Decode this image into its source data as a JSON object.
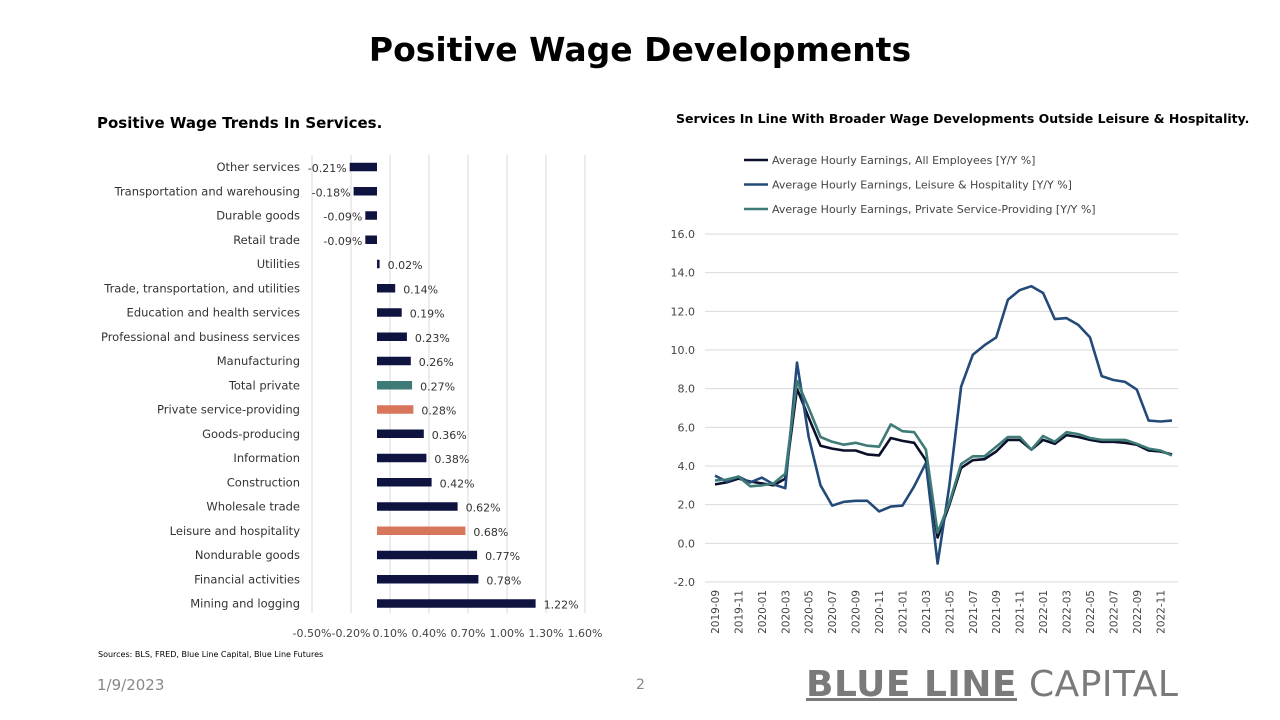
{
  "slide": {
    "title": "Positive Wage Developments",
    "sources": "Sources: BLS, FRED, Blue Line Capital,  Blue Line Futures",
    "date": "1/9/2023",
    "page_number": "2",
    "logo": {
      "bold": "BLUE LINE",
      "light": " CAPITAL"
    }
  },
  "chart_data": [
    {
      "type": "bar",
      "orientation": "horizontal",
      "title": "Positive Wage Trends In Services.",
      "categories": [
        "Other services",
        "Transportation and warehousing",
        "Durable goods",
        "Retail trade",
        "Utilities",
        "Trade, transportation, and utilities",
        "Education and health services",
        "Professional and business services",
        "Manufacturing",
        "Total private",
        "Private service-providing",
        "Goods-producing",
        "Information",
        "Construction",
        "Wholesale trade",
        "Leisure and hospitality",
        "Nondurable goods",
        "Financial activities",
        "Mining and logging"
      ],
      "values": [
        -0.21,
        -0.18,
        -0.09,
        -0.09,
        0.02,
        0.14,
        0.19,
        0.23,
        0.26,
        0.27,
        0.28,
        0.36,
        0.38,
        0.42,
        0.62,
        0.68,
        0.77,
        0.78,
        1.22
      ],
      "data_labels": [
        "-0.21%",
        "-0.18%",
        "-0.09%",
        "-0.09%",
        "0.02%",
        "0.14%",
        "0.19%",
        "0.23%",
        "0.26%",
        "0.27%",
        "0.28%",
        "0.36%",
        "0.38%",
        "0.42%",
        "0.62%",
        "0.68%",
        "0.77%",
        "0.78%",
        "1.22%"
      ],
      "bar_colors": [
        "#0f1340",
        "#0f1340",
        "#0f1340",
        "#0f1340",
        "#0f1340",
        "#0f1340",
        "#0f1340",
        "#0f1340",
        "#0f1340",
        "#3e7a76",
        "#d8765c",
        "#0f1340",
        "#0f1340",
        "#0f1340",
        "#0f1340",
        "#d8765c",
        "#0f1340",
        "#0f1340",
        "#0f1340"
      ],
      "xlim": [
        -0.5,
        1.6
      ],
      "x_ticks": [
        -0.5,
        -0.2,
        0.1,
        0.4,
        0.7,
        1.0,
        1.3,
        1.6
      ],
      "x_tick_labels": [
        "-0.50%",
        "-0.20%",
        "0.10%",
        "0.40%",
        "0.70%",
        "1.00%",
        "1.30%",
        "1.60%"
      ],
      "grid": true
    },
    {
      "type": "line",
      "title": "Services In Line With Broader Wage Developments Outside Leisure & Hospitality.",
      "x": [
        "2019-09",
        "2019-10",
        "2019-11",
        "2019-12",
        "2020-01",
        "2020-02",
        "2020-03",
        "2020-04",
        "2020-05",
        "2020-06",
        "2020-07",
        "2020-08",
        "2020-09",
        "2020-10",
        "2020-11",
        "2020-12",
        "2021-01",
        "2021-02",
        "2021-03",
        "2021-04",
        "2021-05",
        "2021-06",
        "2021-07",
        "2021-08",
        "2021-09",
        "2021-10",
        "2021-11",
        "2021-12",
        "2022-01",
        "2022-02",
        "2022-03",
        "2022-04",
        "2022-05",
        "2022-06",
        "2022-07",
        "2022-08",
        "2022-09",
        "2022-10",
        "2022-11",
        "2022-12"
      ],
      "x_tick_labels": [
        "2019-09",
        "2019-11",
        "2020-01",
        "2020-03",
        "2020-05",
        "2020-07",
        "2020-09",
        "2020-11",
        "2021-01",
        "2021-03",
        "2021-05",
        "2021-07",
        "2021-09",
        "2021-11",
        "2022-01",
        "2022-03",
        "2022-05",
        "2022-07",
        "2022-09",
        "2022-11"
      ],
      "series": [
        {
          "name": "Average Hourly Earnings, All Employees [Y/Y %]",
          "color": "#0a0f2a",
          "values": [
            3.05,
            3.15,
            3.35,
            3.2,
            3.1,
            3.0,
            3.35,
            8.0,
            6.5,
            5.05,
            4.9,
            4.8,
            4.8,
            4.6,
            4.55,
            5.45,
            5.3,
            5.2,
            4.3,
            0.3,
            2.0,
            3.9,
            4.3,
            4.35,
            4.75,
            5.35,
            5.35,
            4.85,
            5.35,
            5.15,
            5.6,
            5.5,
            5.35,
            5.25,
            5.25,
            5.2,
            5.1,
            4.8,
            4.75,
            4.6
          ]
        },
        {
          "name": "Average Hourly Earnings, Leisure & Hospitality [Y/Y %]",
          "color": "#234a78",
          "values": [
            3.5,
            3.2,
            3.45,
            3.15,
            3.4,
            3.05,
            2.85,
            9.35,
            5.5,
            3.0,
            1.95,
            2.15,
            2.2,
            2.2,
            1.65,
            1.9,
            1.95,
            2.95,
            4.15,
            -1.05,
            3.0,
            8.1,
            9.75,
            10.25,
            10.65,
            12.6,
            13.1,
            13.3,
            12.95,
            11.6,
            11.65,
            11.3,
            10.65,
            8.65,
            8.45,
            8.35,
            7.95,
            6.35,
            6.3,
            6.35
          ]
        },
        {
          "name": "Average Hourly Earnings, Private Service-Providing [Y/Y %]",
          "color": "#3e7a76",
          "values": [
            3.25,
            3.3,
            3.45,
            2.95,
            3.0,
            3.1,
            3.6,
            8.4,
            7.0,
            5.5,
            5.25,
            5.1,
            5.2,
            5.05,
            5.0,
            6.15,
            5.8,
            5.75,
            4.85,
            0.55,
            2.1,
            4.1,
            4.5,
            4.5,
            5.0,
            5.5,
            5.5,
            4.85,
            5.55,
            5.25,
            5.75,
            5.65,
            5.45,
            5.35,
            5.35,
            5.35,
            5.15,
            4.9,
            4.8,
            4.55
          ]
        }
      ],
      "ylim": [
        -2.0,
        16.0
      ],
      "y_ticks": [
        -2.0,
        0.0,
        2.0,
        4.0,
        6.0,
        8.0,
        10.0,
        12.0,
        14.0,
        16.0
      ],
      "y_tick_labels": [
        "-2.0",
        "0.0",
        "2.0",
        "4.0",
        "6.0",
        "8.0",
        "10.0",
        "12.0",
        "14.0",
        "16.0"
      ],
      "legend_position": "top",
      "grid": true
    }
  ]
}
